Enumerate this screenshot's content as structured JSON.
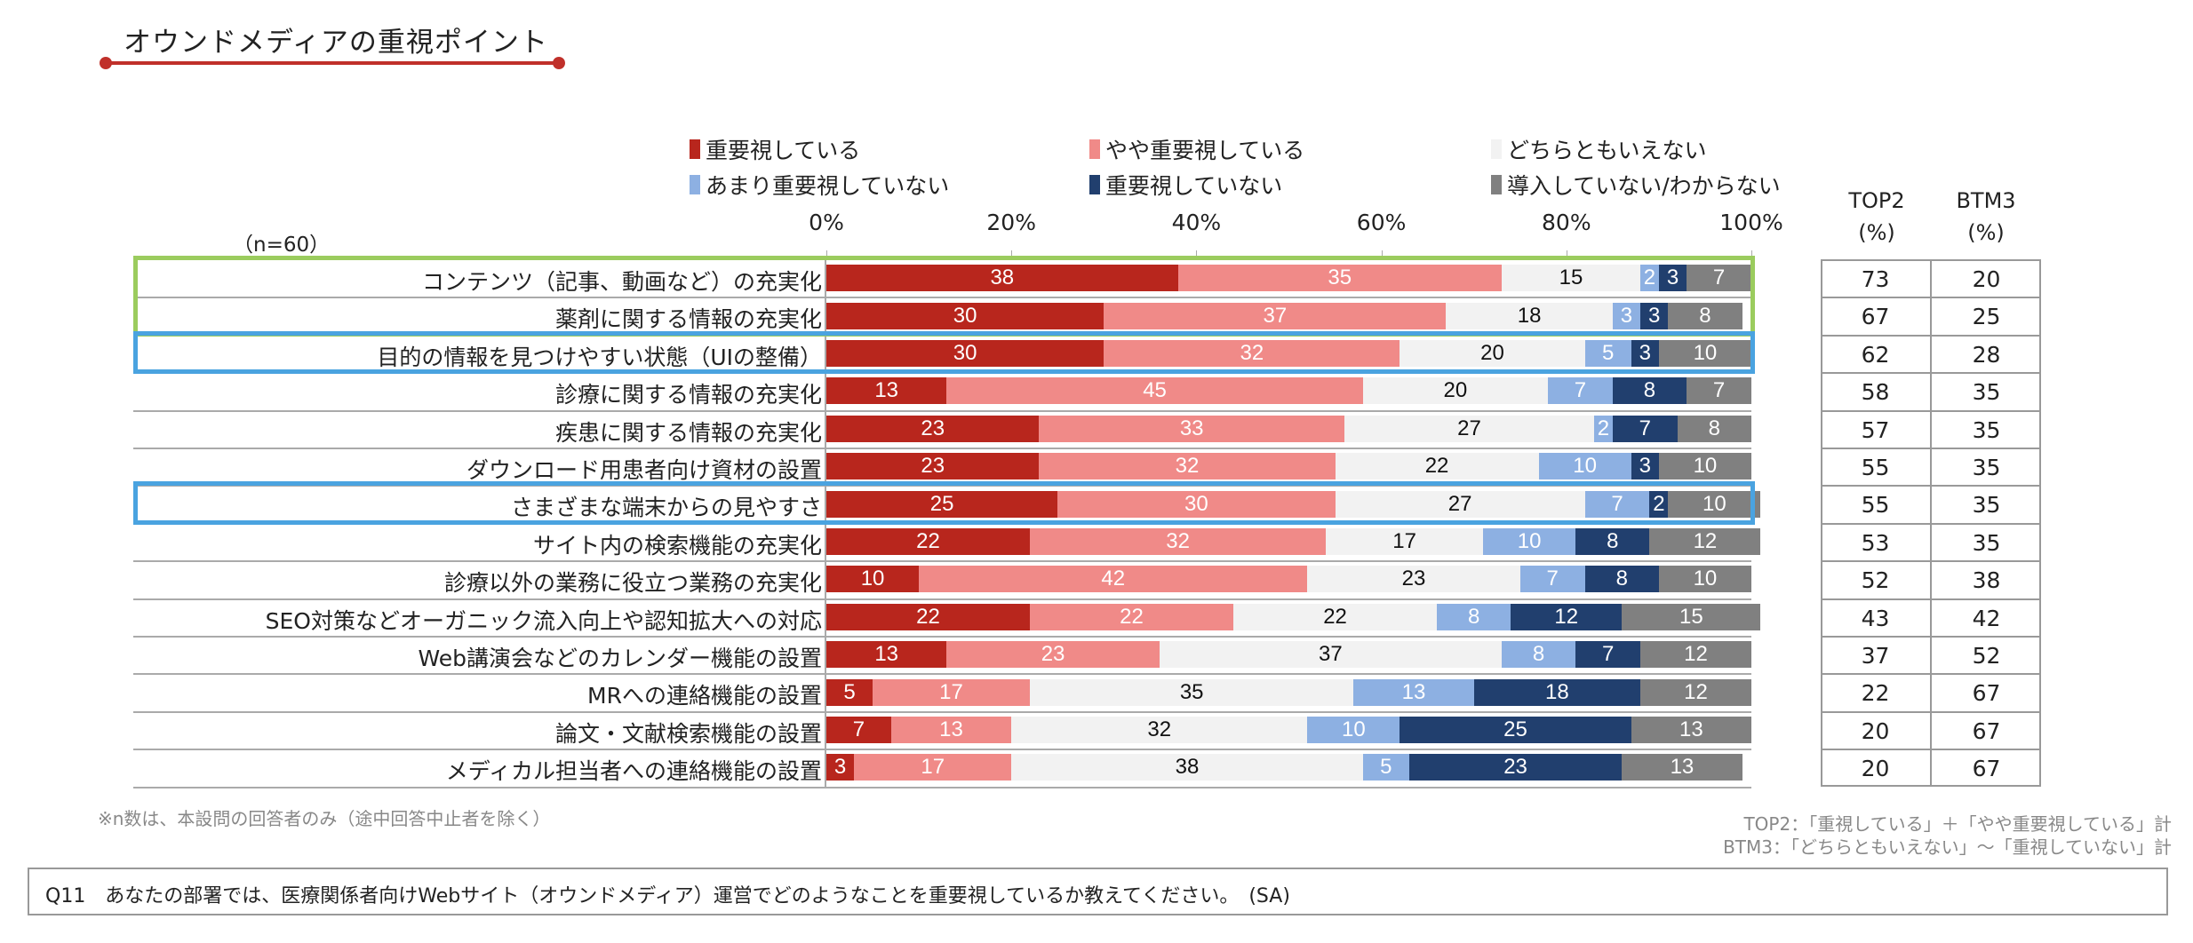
{
  "title": "オウンドメディアの重視ポイント",
  "n_label": "（n=60）",
  "table_headers": {
    "top2": "TOP2",
    "top2_unit": "(%)",
    "btm3": "BTM3",
    "btm3_unit": "(%)"
  },
  "footnote_left": "※n数は、本設問の回答者のみ（途中回答中止者を除く）",
  "footnote_right": [
    "TOP2：「重視している」＋「やや重要視している」計",
    "BTM3：「どちらともいえない」～「重視していない」計"
  ],
  "question": "Q11　あなたの部署では、医療関係者向けWebサイト（オウンドメディア）運営でどのようなことを重要視しているか教えてください。　(SA)",
  "chart_data": {
    "type": "bar",
    "stacked": true,
    "orientation": "horizontal",
    "xlim": [
      0,
      100
    ],
    "xticks": [
      "0%",
      "20%",
      "40%",
      "60%",
      "80%",
      "100%"
    ],
    "legend_position": "top",
    "series": [
      {
        "name": "重要視している",
        "color": "#b8261d",
        "values": [
          38,
          30,
          30,
          13,
          23,
          23,
          25,
          22,
          10,
          22,
          13,
          5,
          7,
          3
        ]
      },
      {
        "name": "やや重要視している",
        "color": "#f08a88",
        "values": [
          35,
          37,
          32,
          45,
          33,
          32,
          30,
          32,
          42,
          22,
          23,
          17,
          13,
          17
        ]
      },
      {
        "name": "どちらともいえない",
        "color": "#f2f2f2",
        "values": [
          15,
          18,
          20,
          20,
          27,
          22,
          27,
          17,
          23,
          22,
          37,
          35,
          32,
          38
        ]
      },
      {
        "name": "あまり重要視していない",
        "color": "#8db0e2",
        "values": [
          2,
          3,
          5,
          7,
          2,
          10,
          7,
          10,
          7,
          8,
          8,
          13,
          10,
          5
        ]
      },
      {
        "name": "重要視していない",
        "color": "#213f6e",
        "values": [
          3,
          3,
          3,
          8,
          7,
          3,
          2,
          8,
          8,
          12,
          7,
          18,
          25,
          23
        ]
      },
      {
        "name": "導入していない/わからない",
        "color": "#808080",
        "values": [
          7,
          8,
          10,
          7,
          8,
          10,
          10,
          12,
          10,
          15,
          12,
          12,
          13,
          13
        ]
      }
    ],
    "categories": [
      "コンテンツ（記事、動画など）の充実化",
      "薬剤に関する情報の充実化",
      "目的の情報を見つけやすい状態（UIの整備）",
      "診療に関する情報の充実化",
      "疾患に関する情報の充実化",
      "ダウンロード用患者向け資材の設置",
      "さまざまな端末からの見やすさ",
      "サイト内の検索機能の充実化",
      "診療以外の業務に役立つ業務の充実化",
      "SEO対策などオーガニック流入向上や認知拡大への対応",
      "Web講演会などのカレンダー機能の設置",
      "MRへの連絡機能の設置",
      "論文・文献検索機能の設置",
      "メディカル担当者への連絡機能の設置"
    ],
    "top2": [
      73,
      67,
      62,
      58,
      57,
      55,
      55,
      53,
      52,
      43,
      37,
      22,
      20,
      20
    ],
    "btm3": [
      20,
      25,
      28,
      35,
      35,
      35,
      35,
      35,
      38,
      42,
      52,
      67,
      67,
      67
    ],
    "highlight_green_rows": [
      0,
      1
    ],
    "highlight_blue_rows": [
      2,
      6
    ]
  }
}
